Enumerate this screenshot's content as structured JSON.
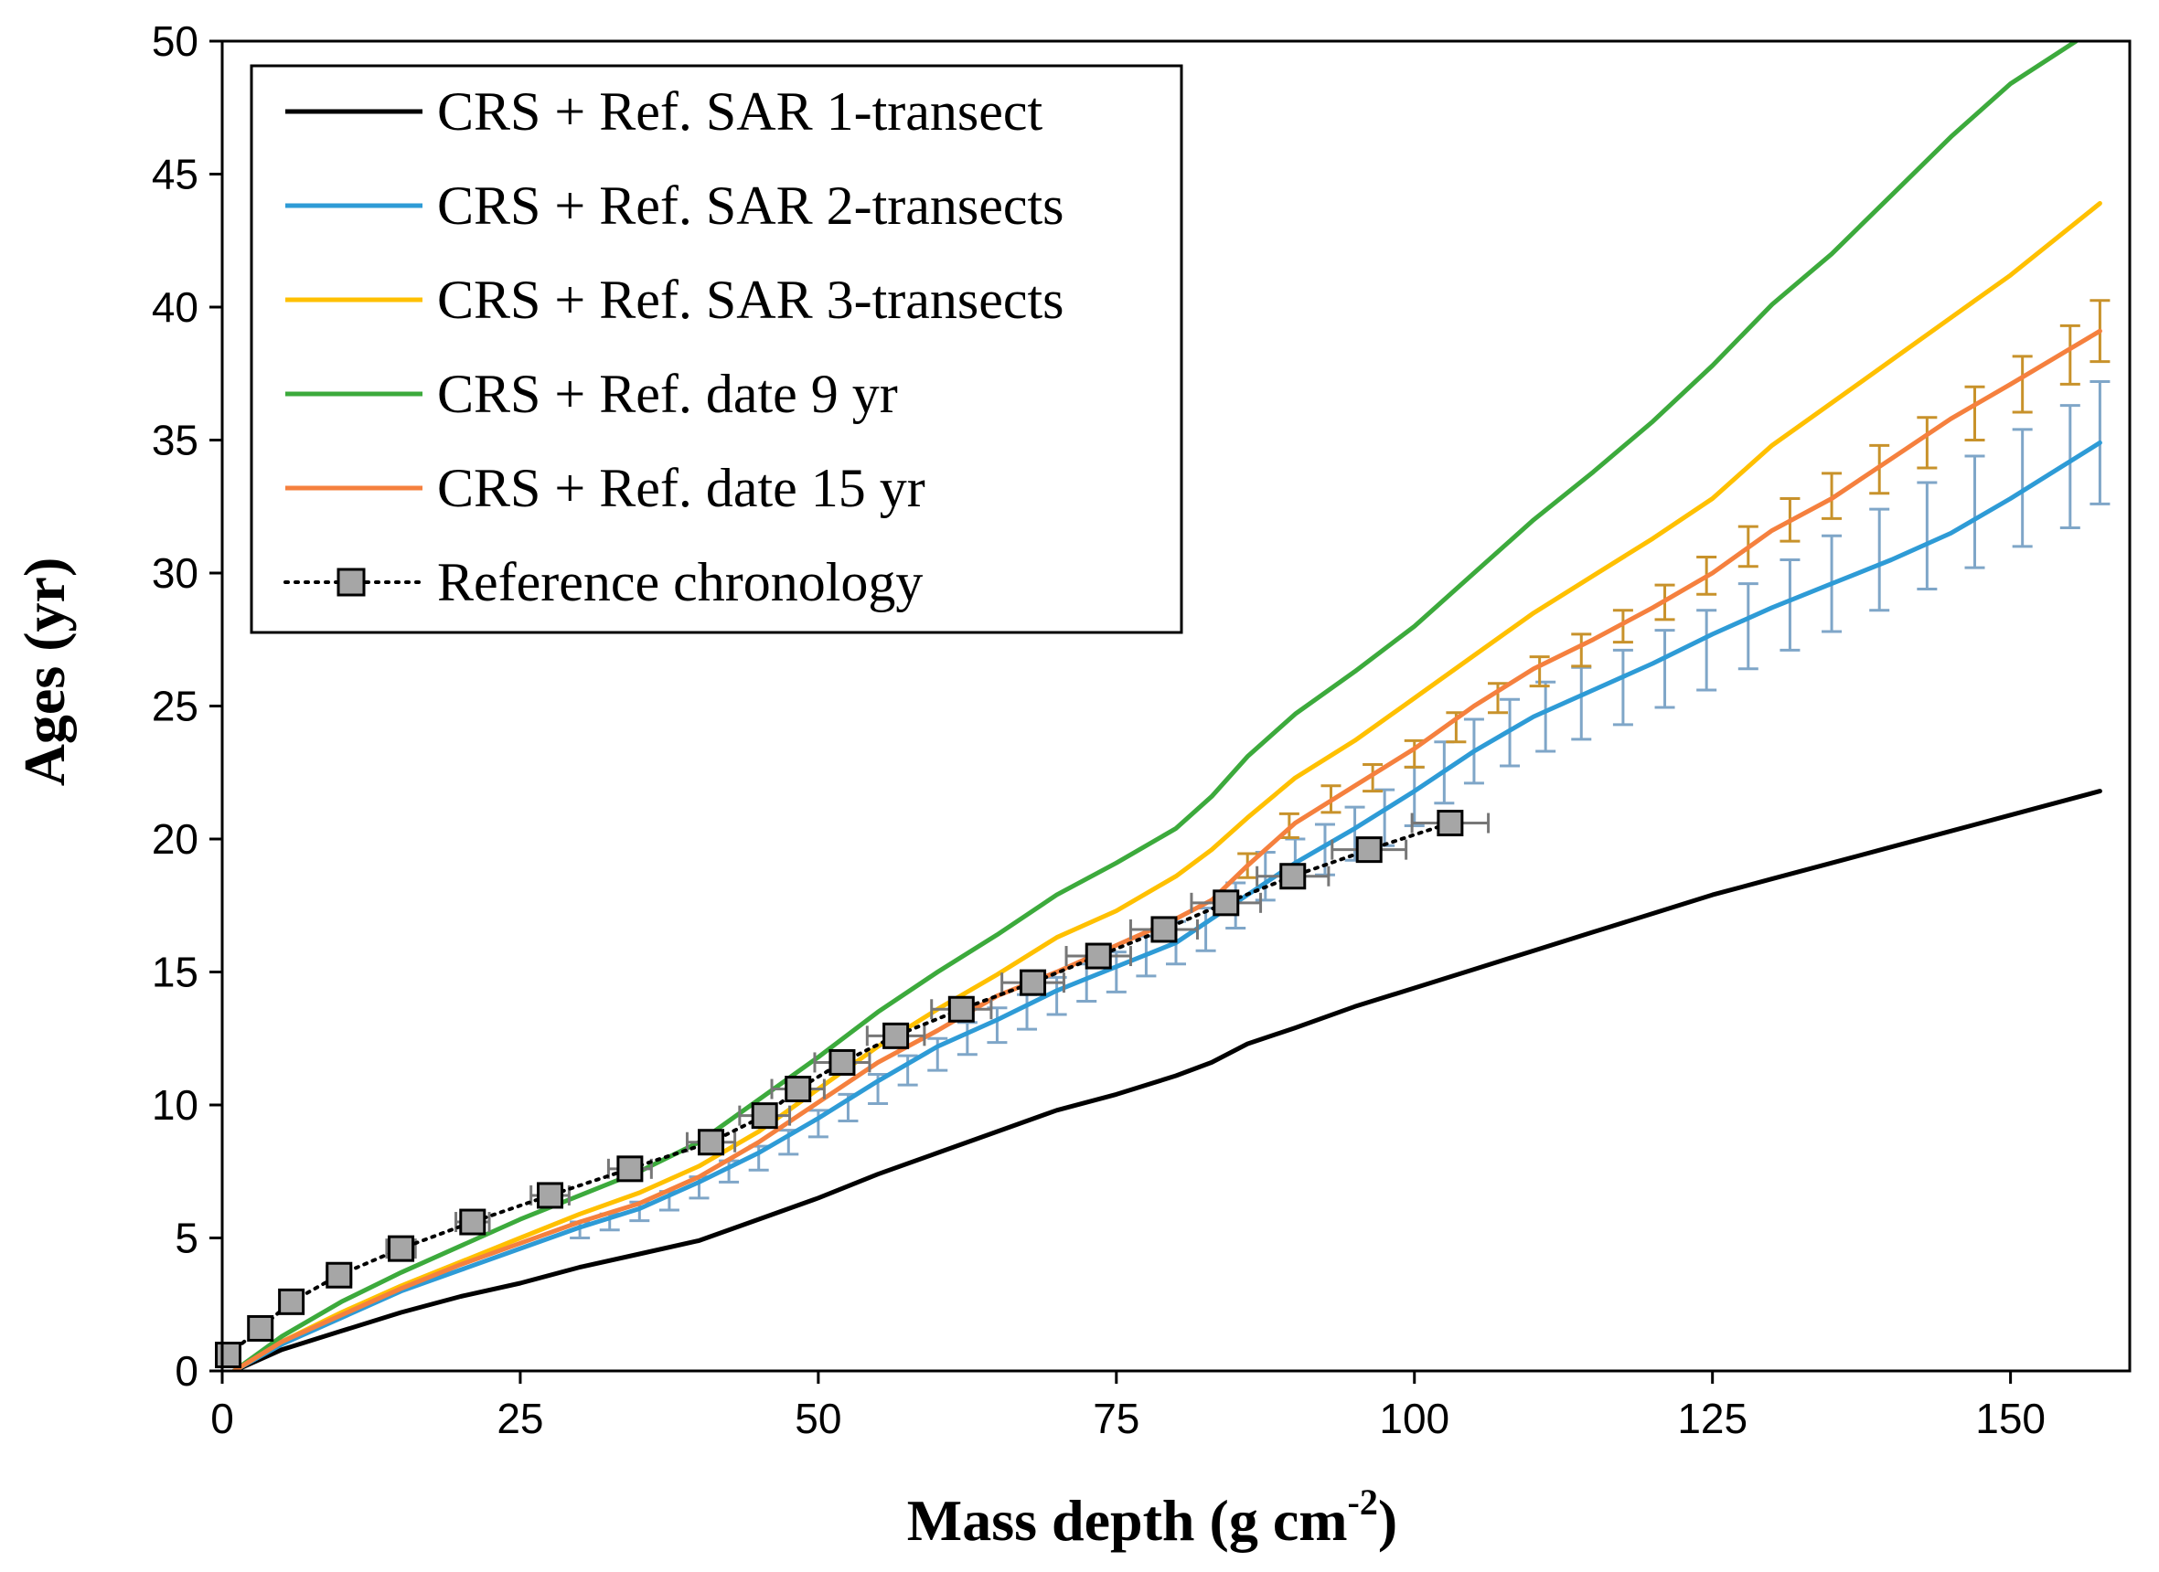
{
  "chart_data": {
    "type": "line",
    "title": "",
    "xlabel": "Mass depth (g cm",
    "xlabel_sup": "-2",
    "xlabel_close": ")",
    "ylabel": "Ages (yr)",
    "xlim": [
      0,
      160
    ],
    "ylim": [
      0,
      50
    ],
    "xticks": [
      0,
      25,
      50,
      75,
      100,
      125,
      150
    ],
    "yticks": [
      0,
      5,
      10,
      15,
      20,
      25,
      30,
      35,
      40,
      45,
      50
    ],
    "legend_position": "top-left",
    "series": [
      {
        "name": "CRS + Ref. SAR 1-transect",
        "color": "#000000",
        "x": [
          1,
          5,
          10,
          15,
          20,
          25,
          30,
          35,
          40,
          45,
          50,
          55,
          60,
          65,
          70,
          75,
          80,
          83,
          86,
          90,
          95,
          100,
          105,
          110,
          115,
          120,
          125,
          130,
          135,
          140,
          145,
          150,
          157.5
        ],
        "y": [
          0,
          0.8,
          1.5,
          2.2,
          2.8,
          3.3,
          3.9,
          4.4,
          4.9,
          5.7,
          6.5,
          7.4,
          8.2,
          9.0,
          9.8,
          10.4,
          11.1,
          11.6,
          12.3,
          12.9,
          13.7,
          14.4,
          15.1,
          15.8,
          16.5,
          17.2,
          17.9,
          18.5,
          19.1,
          19.7,
          20.3,
          20.9,
          21.8
        ]
      },
      {
        "name": "CRS + Ref. SAR 2-transects",
        "color": "#2E9BD6",
        "x": [
          1,
          5,
          10,
          15,
          20,
          25,
          30,
          35,
          40,
          45,
          50,
          55,
          60,
          65,
          70,
          75,
          80,
          85,
          90,
          95,
          100,
          105,
          110,
          115,
          120,
          125,
          130,
          135,
          140,
          145,
          150,
          157.5
        ],
        "y": [
          0,
          1.0,
          2.0,
          3.0,
          3.8,
          4.6,
          5.4,
          6.1,
          7.1,
          8.2,
          9.5,
          10.9,
          12.2,
          13.2,
          14.3,
          15.2,
          16.1,
          17.6,
          19.1,
          20.4,
          21.8,
          23.3,
          24.6,
          25.6,
          26.6,
          27.7,
          28.7,
          29.6,
          30.5,
          31.5,
          32.8,
          34.9
        ]
      },
      {
        "name": "CRS + Ref. SAR 3-transects",
        "color": "#FFC000",
        "x": [
          1,
          5,
          10,
          15,
          20,
          25,
          30,
          35,
          40,
          45,
          50,
          55,
          60,
          65,
          70,
          75,
          80,
          83,
          86,
          90,
          95,
          100,
          105,
          110,
          115,
          120,
          125,
          130,
          135,
          140,
          145,
          150,
          157.5
        ],
        "y": [
          0,
          1.1,
          2.2,
          3.2,
          4.1,
          5.0,
          5.9,
          6.7,
          7.7,
          9.0,
          10.6,
          12.2,
          13.6,
          14.9,
          16.3,
          17.3,
          18.6,
          19.6,
          20.8,
          22.3,
          23.7,
          25.3,
          26.9,
          28.5,
          29.9,
          31.3,
          32.8,
          34.8,
          36.4,
          38.0,
          39.6,
          41.2,
          43.9
        ]
      },
      {
        "name": "CRS + Ref. date 9 yr",
        "color": "#3CAA3C",
        "x": [
          1,
          5,
          10,
          15,
          20,
          25,
          30,
          35,
          40,
          45,
          50,
          55,
          60,
          65,
          70,
          75,
          80,
          83,
          86,
          90,
          95,
          100,
          105,
          110,
          115,
          120,
          125,
          130,
          135,
          140,
          145,
          150,
          155.5
        ],
        "y": [
          0,
          1.3,
          2.6,
          3.7,
          4.7,
          5.7,
          6.6,
          7.5,
          8.6,
          10.2,
          11.8,
          13.5,
          15.0,
          16.4,
          17.9,
          19.1,
          20.4,
          21.6,
          23.1,
          24.7,
          26.3,
          28.0,
          30.0,
          32.0,
          33.8,
          35.7,
          37.8,
          40.1,
          42.0,
          44.2,
          46.4,
          48.4,
          50.0
        ]
      },
      {
        "name": "CRS + Ref. date 15 yr",
        "color": "#F5803E",
        "x": [
          1,
          5,
          10,
          15,
          20,
          25,
          30,
          35,
          40,
          45,
          50,
          55,
          60,
          65,
          70,
          75,
          80,
          83,
          86,
          90,
          95,
          100,
          105,
          110,
          115,
          120,
          125,
          130,
          135,
          140,
          145,
          150,
          157.5
        ],
        "y": [
          0,
          1.1,
          2.1,
          3.1,
          4.0,
          4.8,
          5.6,
          6.3,
          7.3,
          8.6,
          10.1,
          11.6,
          12.8,
          14.1,
          15.0,
          16.0,
          17.0,
          17.7,
          19.0,
          20.6,
          22.0,
          23.4,
          25.0,
          26.4,
          27.5,
          28.7,
          30.0,
          31.6,
          32.8,
          34.3,
          35.8,
          37.1,
          39.1
        ]
      }
    ],
    "error_bars": [
      {
        "series_name": "CRS + Ref. SAR 2-transects",
        "color": "#7FA6C8",
        "x": [
          30,
          32.5,
          35,
          37.5,
          40,
          42.5,
          45,
          47.5,
          50,
          52.5,
          55,
          57.5,
          60,
          62.5,
          65,
          67.5,
          70,
          72.5,
          75,
          77.5,
          80,
          82.5,
          85,
          87.5,
          90,
          92.5,
          95,
          97.5,
          100,
          102.5,
          105,
          108,
          111,
          114,
          117.5,
          121,
          124.5,
          128,
          131.5,
          135,
          139,
          143,
          147,
          151,
          155,
          157.5
        ],
        "y": [
          5.3,
          5.6,
          6.0,
          6.4,
          6.9,
          7.5,
          8.0,
          8.6,
          9.3,
          9.9,
          10.6,
          11.3,
          11.9,
          12.5,
          13.0,
          13.5,
          14.1,
          14.6,
          15.0,
          15.6,
          16.1,
          16.6,
          17.5,
          18.6,
          19.1,
          19.6,
          20.2,
          20.8,
          21.6,
          22.5,
          23.3,
          24.0,
          24.6,
          25.1,
          25.7,
          26.4,
          27.1,
          28.0,
          28.8,
          29.6,
          30.5,
          31.4,
          32.3,
          33.2,
          34.0,
          34.9
        ],
        "err": [
          0.3,
          0.3,
          0.35,
          0.35,
          0.4,
          0.4,
          0.45,
          0.45,
          0.5,
          0.5,
          0.55,
          0.55,
          0.6,
          0.6,
          0.65,
          0.65,
          0.7,
          0.7,
          0.75,
          0.75,
          0.8,
          0.8,
          0.85,
          0.9,
          0.9,
          0.95,
          1.0,
          1.05,
          1.1,
          1.15,
          1.2,
          1.25,
          1.3,
          1.35,
          1.4,
          1.45,
          1.5,
          1.6,
          1.7,
          1.8,
          1.9,
          2.0,
          2.1,
          2.2,
          2.3,
          2.3
        ]
      },
      {
        "series_name": "CRS + Ref. date 15 yr",
        "color": "#C8922B",
        "x": [
          86,
          89.5,
          93,
          96.5,
          100,
          103.5,
          107,
          110.5,
          114,
          117.5,
          121,
          124.5,
          128,
          131.5,
          135,
          139,
          143,
          147,
          151,
          155,
          157.5
        ],
        "y": [
          19.0,
          20.5,
          21.5,
          22.3,
          23.2,
          24.2,
          25.3,
          26.3,
          27.1,
          28.0,
          28.9,
          29.9,
          31.0,
          32.0,
          32.9,
          33.9,
          34.9,
          36.0,
          37.1,
          38.2,
          39.1
        ],
        "err": [
          0.45,
          0.45,
          0.5,
          0.5,
          0.5,
          0.55,
          0.55,
          0.55,
          0.6,
          0.6,
          0.65,
          0.7,
          0.75,
          0.8,
          0.85,
          0.9,
          0.95,
          1.0,
          1.05,
          1.1,
          1.15
        ]
      }
    ],
    "reference_chronology": {
      "name": "Reference chronology",
      "marker_color": "#A6A6A6",
      "x": [
        0.5,
        3.2,
        5.8,
        9.8,
        15.0,
        21.0,
        27.5,
        34.2,
        41.0,
        45.5,
        48.3,
        52.0,
        56.5,
        62.0,
        68.0,
        73.5,
        79.0,
        84.2,
        89.8,
        96.2,
        103.0
      ],
      "y": [
        0.6,
        1.6,
        2.6,
        3.6,
        4.6,
        5.6,
        6.6,
        7.6,
        8.6,
        9.6,
        10.6,
        11.6,
        12.6,
        13.6,
        14.6,
        15.6,
        16.6,
        17.6,
        18.6,
        19.6,
        20.6
      ],
      "xerr": [
        0.3,
        0.5,
        0.7,
        1.0,
        1.2,
        1.4,
        1.6,
        1.8,
        2.0,
        2.1,
        2.2,
        2.3,
        2.4,
        2.5,
        2.6,
        2.7,
        2.8,
        2.9,
        3.0,
        3.1,
        3.2
      ]
    }
  }
}
